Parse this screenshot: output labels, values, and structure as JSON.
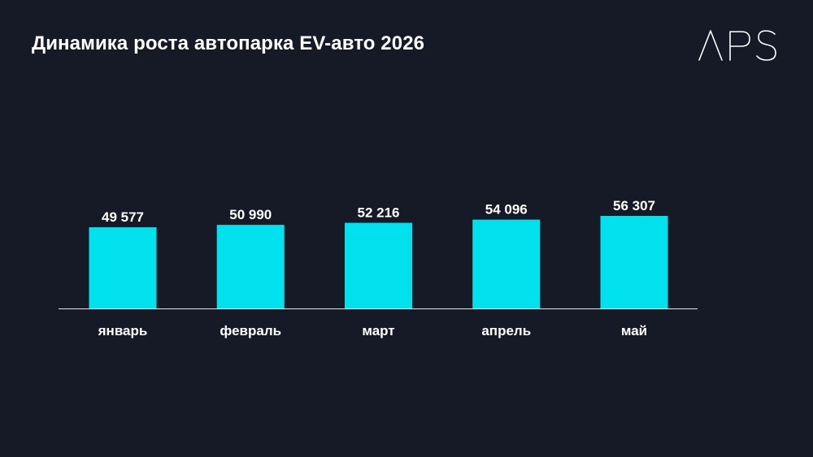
{
  "slide": {
    "title": "Динамика роста автопарка EV-авто 2026",
    "logo_text": "APS"
  },
  "colors": {
    "background": "#161a27",
    "bar": "#00e1ee",
    "axis": "#e6e6e6",
    "text": "#ffffff"
  },
  "chart_data": {
    "type": "bar",
    "title": "Динамика роста автопарка EV-авто 2026",
    "categories": [
      "январь",
      "февраль",
      "март",
      "апрель",
      "май"
    ],
    "values": [
      49577,
      50990,
      52216,
      54096,
      56307
    ],
    "value_labels": [
      "49 577",
      "50 990",
      "52 216",
      "54 096",
      "56 307"
    ],
    "xlabel": "",
    "ylabel": "",
    "grid": false,
    "legend": "none"
  }
}
